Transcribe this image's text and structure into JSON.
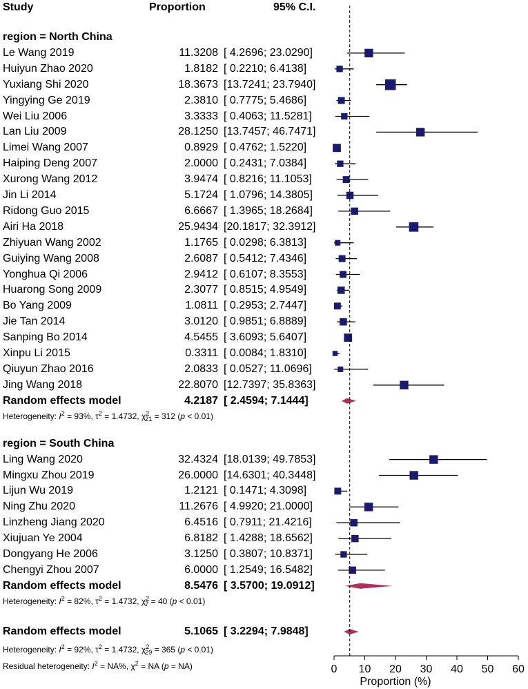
{
  "headers": {
    "study": "Study",
    "proportion": "Proportion",
    "ci": "95% C.I."
  },
  "colors": {
    "square": "#1a1a6e",
    "diamond": "#b0305a",
    "line": "#000000"
  },
  "chart_data": {
    "type": "forest",
    "xlabel": "Proportion (%)",
    "xlim": [
      0,
      60
    ],
    "ticks": [
      0,
      10,
      20,
      30,
      40,
      50,
      60
    ],
    "tick_labels": [
      "0",
      "10",
      "20",
      "30",
      "40",
      "50",
      "60"
    ],
    "overall_ref": 5.1065,
    "groups": [
      {
        "label": "region = North China",
        "studies": [
          {
            "study": "Le Wang 2019",
            "est": 11.3208,
            "lo": 4.2696,
            "hi": 23.029,
            "est_text": "11.3208",
            "ci_text": "[ 4.2696; 23.0290]",
            "w": 2
          },
          {
            "study": "Huiyun Zhao 2020",
            "est": 1.8182,
            "lo": 0.221,
            "hi": 6.4138,
            "est_text": "1.8182",
            "ci_text": "[ 0.2210; 6.4138]",
            "w": 1.5
          },
          {
            "study": "Yuxiang Shi 2020",
            "est": 18.3673,
            "lo": 13.7241,
            "hi": 23.794,
            "est_text": "18.3673",
            "ci_text": "[13.7241; 23.7940]",
            "w": 2.5
          },
          {
            "study": "Yingying Ge 2019",
            "est": 2.381,
            "lo": 0.7775,
            "hi": 5.4686,
            "est_text": "2.3810",
            "ci_text": "[ 0.7775; 5.4686]",
            "w": 1.6
          },
          {
            "study": "Wei Liu 2006",
            "est": 3.3333,
            "lo": 0.4063,
            "hi": 11.5281,
            "est_text": "3.3333",
            "ci_text": "[ 0.4063; 11.5281]",
            "w": 1.5
          },
          {
            "study": "Lan Liu 2009",
            "est": 28.125,
            "lo": 13.7457,
            "hi": 46.7471,
            "est_text": "28.1250",
            "ci_text": "[13.7457; 46.7471]",
            "w": 2
          },
          {
            "study": "Limei Wang 2007",
            "est": 0.8929,
            "lo": 0.4762,
            "hi": 1.522,
            "est_text": "0.8929",
            "ci_text": "[ 0.4762; 1.5220]",
            "w": 1.9
          },
          {
            "study": "Haiping Deng 2007",
            "est": 2.0,
            "lo": 0.2431,
            "hi": 7.0384,
            "est_text": "2.0000",
            "ci_text": "[ 0.2431; 7.0384]",
            "w": 1.5
          },
          {
            "study": "Xurong Wang 2012",
            "est": 3.9474,
            "lo": 0.8216,
            "hi": 11.1053,
            "est_text": "3.9474",
            "ci_text": "[ 0.8216; 11.1053]",
            "w": 1.6
          },
          {
            "study": "Jin Li 2014",
            "est": 5.1724,
            "lo": 1.0796,
            "hi": 14.3805,
            "est_text": "5.1724",
            "ci_text": "[ 1.0796; 14.3805]",
            "w": 1.7
          },
          {
            "study": "Ridong Guo 2015",
            "est": 6.6667,
            "lo": 1.3965,
            "hi": 18.2684,
            "est_text": "6.6667",
            "ci_text": "[ 1.3965; 18.2684]",
            "w": 1.7
          },
          {
            "study": "Airi Ha 2018",
            "est": 25.9434,
            "lo": 20.1817,
            "hi": 32.3912,
            "est_text": "25.9434",
            "ci_text": "[20.1817; 32.3912]",
            "w": 2.2
          },
          {
            "study": "Zhiyuan Wang 2002",
            "est": 1.1765,
            "lo": 0.0298,
            "hi": 6.3813,
            "est_text": "1.1765",
            "ci_text": "[ 0.0298; 6.3813]",
            "w": 1.3
          },
          {
            "study": "Guiying Wang 2008",
            "est": 2.6087,
            "lo": 0.5412,
            "hi": 7.4346,
            "est_text": "2.6087",
            "ci_text": "[ 0.5412; 7.4346]",
            "w": 1.6
          },
          {
            "study": "Yonghua Qi 2006",
            "est": 2.9412,
            "lo": 0.6107,
            "hi": 8.3553,
            "est_text": "2.9412",
            "ci_text": "[ 0.6107; 8.3553]",
            "w": 1.6
          },
          {
            "study": "Huarong Song 2009",
            "est": 2.3077,
            "lo": 0.8515,
            "hi": 4.9549,
            "est_text": "2.3077",
            "ci_text": "[ 0.8515; 4.9549]",
            "w": 1.7
          },
          {
            "study": "Bo Yang 2009",
            "est": 1.0811,
            "lo": 0.2953,
            "hi": 2.7447,
            "est_text": "1.0811",
            "ci_text": "[ 0.2953; 2.7447]",
            "w": 1.6
          },
          {
            "study": "Jie Tan 2014",
            "est": 3.012,
            "lo": 0.9851,
            "hi": 6.8889,
            "est_text": "3.0120",
            "ci_text": "[ 0.9851; 6.8889]",
            "w": 1.7
          },
          {
            "study": "Sanping Bo 2014",
            "est": 4.5455,
            "lo": 3.6093,
            "hi": 5.6407,
            "est_text": "4.5455",
            "ci_text": "[ 3.6093; 5.6407]",
            "w": 1.9
          },
          {
            "study": "Xinpu Li 2015",
            "est": 0.3311,
            "lo": 0.0084,
            "hi": 1.831,
            "est_text": "0.3311",
            "ci_text": "[ 0.0084; 1.8310]",
            "w": 1.2
          },
          {
            "study": "Qiuyun Zhao 2016",
            "est": 2.0833,
            "lo": 0.0527,
            "hi": 11.0696,
            "est_text": "2.0833",
            "ci_text": "[ 0.0527; 11.0696]",
            "w": 1.3
          },
          {
            "study": "Jing Wang 2018",
            "est": 22.807,
            "lo": 12.7397,
            "hi": 35.8363,
            "est_text": "22.8070",
            "ci_text": "[12.7397; 35.8363]",
            "w": 2
          }
        ],
        "pooled": {
          "label": "Random effects model",
          "est": 4.2187,
          "lo": 2.4594,
          "hi": 7.1444,
          "est_text": "4.2187",
          "ci_text": "[ 2.4594; 7.1444]"
        },
        "heterogeneity": {
          "prefix": "Heterogeneity: ",
          "i2_label": "I",
          "i2_value": " = 93%, ",
          "tau_label": "τ",
          "tau_value": " = 1.4732, ",
          "chi_label": "χ",
          "chi_df": "21",
          "chi_value": " = 312 (",
          "p_label": "p",
          "p_value": " < 0.01)"
        }
      },
      {
        "label": "region = South China",
        "studies": [
          {
            "study": "Ling Wang 2020",
            "est": 32.4324,
            "lo": 18.0139,
            "hi": 49.7853,
            "est_text": "32.4324",
            "ci_text": "[18.0139; 49.7853]",
            "w": 2
          },
          {
            "study": "Mingxu Zhou 2019",
            "est": 26.0,
            "lo": 14.6301,
            "hi": 40.3448,
            "est_text": "26.0000",
            "ci_text": "[14.6301; 40.3448]",
            "w": 2
          },
          {
            "study": "Lijun Wu 2019",
            "est": 1.2121,
            "lo": 0.1471,
            "hi": 4.3098,
            "est_text": "1.2121",
            "ci_text": "[ 0.1471; 4.3098]",
            "w": 1.6
          },
          {
            "study": "Ning Zhu 2020",
            "est": 11.2676,
            "lo": 4.992,
            "hi": 21.0,
            "est_text": "11.2676",
            "ci_text": "[ 4.9920; 21.0000]",
            "w": 2
          },
          {
            "study": "Linzheng Jiang 2020",
            "est": 6.4516,
            "lo": 0.7911,
            "hi": 21.4216,
            "est_text": "6.4516",
            "ci_text": "[ 0.7911; 21.4216]",
            "w": 1.7
          },
          {
            "study": "Xiujuan Ye 2004",
            "est": 6.8182,
            "lo": 1.4288,
            "hi": 18.6562,
            "est_text": "6.8182",
            "ci_text": "[ 1.4288; 18.6562]",
            "w": 1.7
          },
          {
            "study": "Dongyang He 2006",
            "est": 3.125,
            "lo": 0.3807,
            "hi": 10.8371,
            "est_text": "3.1250",
            "ci_text": "[ 0.3807; 10.8371]",
            "w": 1.5
          },
          {
            "study": "Chengyi Zhou 2007",
            "est": 6.0,
            "lo": 1.2549,
            "hi": 16.5482,
            "est_text": "6.0000",
            "ci_text": "[ 1.2549; 16.5482]",
            "w": 1.7
          }
        ],
        "pooled": {
          "label": "Random effects model",
          "est": 8.5476,
          "lo": 3.57,
          "hi": 19.0912,
          "est_text": "8.5476",
          "ci_text": "[ 3.5700; 19.0912]"
        },
        "heterogeneity": {
          "prefix": "Heterogeneity: ",
          "i2_label": "I",
          "i2_value": " = 82%, ",
          "tau_label": "τ",
          "tau_value": " = 1.4732, ",
          "chi_label": "χ",
          "chi_df": "7",
          "chi_value": " = 40 (",
          "p_label": "p",
          "p_value": " < 0.01)"
        }
      }
    ],
    "overall": {
      "label": "Random effects model",
      "est": 5.1065,
      "lo": 3.2294,
      "hi": 7.9848,
      "est_text": "5.1065",
      "ci_text": "[ 3.2294; 7.9848]",
      "heterogeneity": {
        "prefix": "Heterogeneity: ",
        "i2_label": "I",
        "i2_value": " = 92%, ",
        "tau_label": "τ",
        "tau_value": " = 1.4732, ",
        "chi_label": "χ",
        "chi_df": "29",
        "chi_value": " = 365 (",
        "p_label": "p",
        "p_value": " < 0.01)"
      },
      "residual": {
        "prefix": "Residual heterogeneity: ",
        "i2_label": "I",
        "i2_value": " = NA%, ",
        "chi_label": "χ",
        "chi_value": " = NA (",
        "p_label": "p",
        "p_value": " = NA)"
      }
    }
  }
}
